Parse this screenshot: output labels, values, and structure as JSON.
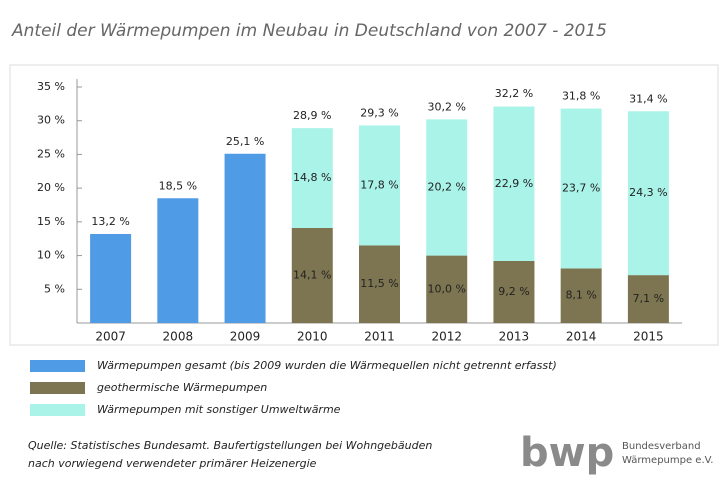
{
  "chart_data": {
    "type": "stacked_bar",
    "title": "Anteil der Wärmepumpen im Neubau in Deutschland von 2007 - 2015",
    "categories": [
      "2007",
      "2008",
      "2009",
      "2010",
      "2011",
      "2012",
      "2013",
      "2014",
      "2015"
    ],
    "series": [
      {
        "name": "Wärmepumpen gesamt (bis 2009 wurden die Wärmequellen nicht getrennt erfasst)",
        "color": "#4f9be6",
        "values": [
          13.2,
          18.5,
          25.1,
          null,
          null,
          null,
          null,
          null,
          null
        ],
        "value_labels": [
          "13,2 %",
          "18,5 %",
          "25,1 %",
          null,
          null,
          null,
          null,
          null,
          null
        ]
      },
      {
        "name": "geothermische Wärmepumpen",
        "color": "#7d7551",
        "values": [
          null,
          null,
          null,
          14.1,
          11.5,
          10.0,
          9.2,
          8.1,
          7.1
        ],
        "value_labels": [
          null,
          null,
          null,
          "14,1 %",
          "11,5 %",
          "10,0 %",
          "9,2 %",
          "8,1 %",
          "7,1 %"
        ]
      },
      {
        "name": "Wärmepumpen mit sonstiger Umweltwärme",
        "color": "#aaf3e8",
        "values": [
          null,
          null,
          null,
          14.8,
          17.8,
          20.2,
          22.9,
          23.7,
          24.3
        ],
        "value_labels": [
          null,
          null,
          null,
          "14,8 %",
          "17,8 %",
          "20,2 %",
          "22,9 %",
          "23,7 %",
          "24,3 %"
        ]
      }
    ],
    "stack_totals": {
      "values": [
        null,
        null,
        null,
        28.9,
        29.3,
        30.2,
        32.2,
        31.8,
        31.4
      ],
      "value_labels": [
        null,
        null,
        null,
        "28,9 %",
        "29,3 %",
        "30,2 %",
        "32,2 %",
        "31,8 %",
        "31,4 %"
      ]
    },
    "ylim": [
      0,
      35
    ],
    "yticks": [
      {
        "value": 5,
        "label": "5 %"
      },
      {
        "value": 10,
        "label": "10 %"
      },
      {
        "value": 15,
        "label": "15 %"
      },
      {
        "value": 20,
        "label": "20 %"
      },
      {
        "value": 25,
        "label": "25 %"
      },
      {
        "value": 30,
        "label": "30 %"
      },
      {
        "value": 35,
        "label": "35 %"
      }
    ],
    "grid": false,
    "source": [
      "Quelle: Statistisches Bundesamt. Baufertigstellungen bei Wohngebäuden",
      "nach vorwiegend verwendeter primärer Heizenergie"
    ],
    "logo": {
      "mark": "bwp",
      "text": [
        "Bundesverband",
        "Wärmepumpe e.V."
      ]
    }
  }
}
